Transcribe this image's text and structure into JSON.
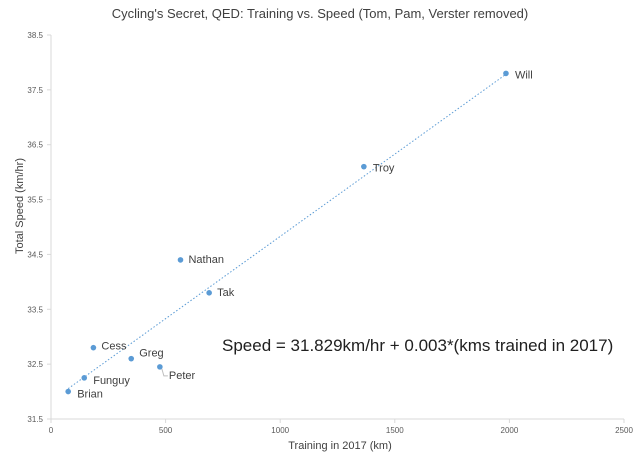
{
  "chart_data": {
    "type": "scatter",
    "title": "Cycling's Secret, QED: Training vs. Speed (Tom, Pam, Verster removed)",
    "xlabel": "Training in 2017 (km)",
    "ylabel": "Total Speed (km/hr)",
    "xlim": [
      0,
      2500
    ],
    "ylim": [
      31.5,
      38.5
    ],
    "xticks": [
      0,
      500,
      1000,
      1500,
      2000,
      2500
    ],
    "yticks": [
      31.5,
      32.5,
      33.5,
      34.5,
      35.5,
      36.5,
      37.5,
      38.5
    ],
    "grid": false,
    "legend": "none",
    "point_color": "#5b9bd5",
    "points": [
      {
        "label": "Brian",
        "x": 75,
        "y": 32.0
      },
      {
        "label": "Funguy",
        "x": 145,
        "y": 32.25
      },
      {
        "label": "Cess",
        "x": 185,
        "y": 32.8
      },
      {
        "label": "Greg",
        "x": 350,
        "y": 32.6
      },
      {
        "label": "Peter",
        "x": 475,
        "y": 32.45
      },
      {
        "label": "Nathan",
        "x": 565,
        "y": 34.4
      },
      {
        "label": "Tak",
        "x": 690,
        "y": 33.8
      },
      {
        "label": "Troy",
        "x": 1365,
        "y": 36.1
      },
      {
        "label": "Will",
        "x": 1985,
        "y": 37.8
      }
    ],
    "trendline": {
      "type": "linear",
      "intercept": 31.829,
      "slope": 0.003,
      "equation": "Speed = 31.829km/hr + 0.003*(kms trained in 2017)"
    }
  }
}
